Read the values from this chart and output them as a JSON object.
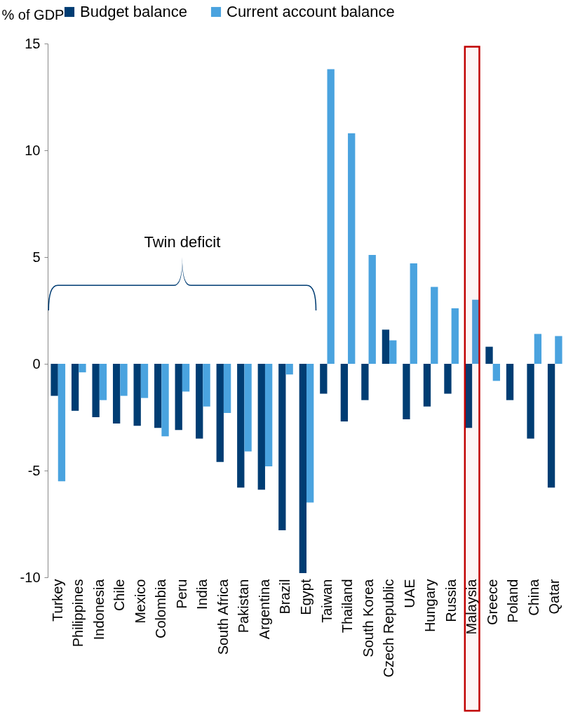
{
  "chart_data": {
    "type": "bar",
    "ylabel": "% of GDP",
    "categories": [
      "Turkey",
      "Philippines",
      "Indonesia",
      "Chile",
      "Mexico",
      "Colombia",
      "Peru",
      "India",
      "South Africa",
      "Pakistan",
      "Argentina",
      "Brazil",
      "Egypt",
      "Taiwan",
      "Thailand",
      "South Korea",
      "Czech Republic",
      "UAE",
      "Hungary",
      "Russia",
      "Malaysia",
      "Greece",
      "Poland",
      "China",
      "Qatar"
    ],
    "series": [
      {
        "name": "Budget balance",
        "color": "#003d73",
        "values": [
          -1.5,
          -2.2,
          -2.5,
          -2.8,
          -2.9,
          -3.0,
          -3.1,
          -3.5,
          -4.6,
          -5.8,
          -5.9,
          -7.8,
          -9.8,
          -1.4,
          -2.7,
          -1.7,
          1.6,
          -2.6,
          -2.0,
          -1.4,
          -3.0,
          0.8,
          -1.7,
          -3.5,
          -5.8
        ]
      },
      {
        "name": "Current account balance",
        "color": "#4aa3df",
        "values": [
          -5.5,
          -0.4,
          -1.7,
          -1.5,
          -1.6,
          -3.4,
          -1.3,
          -2.0,
          -2.3,
          -4.1,
          -4.8,
          -0.5,
          -6.5,
          13.8,
          10.8,
          5.1,
          1.1,
          4.7,
          3.6,
          2.6,
          3.0,
          -0.8,
          null,
          1.4,
          1.3
        ]
      }
    ],
    "ylim": [
      -10,
      15
    ],
    "yticks": [
      -10,
      -5,
      0,
      5,
      10,
      15
    ],
    "grid": false,
    "legend": "top left",
    "bands": [
      {
        "axis": "x",
        "from": "Malaysia",
        "to": "Malaysia",
        "color": "#c00000"
      }
    ],
    "annotations": [
      "Twin deficit"
    ]
  }
}
